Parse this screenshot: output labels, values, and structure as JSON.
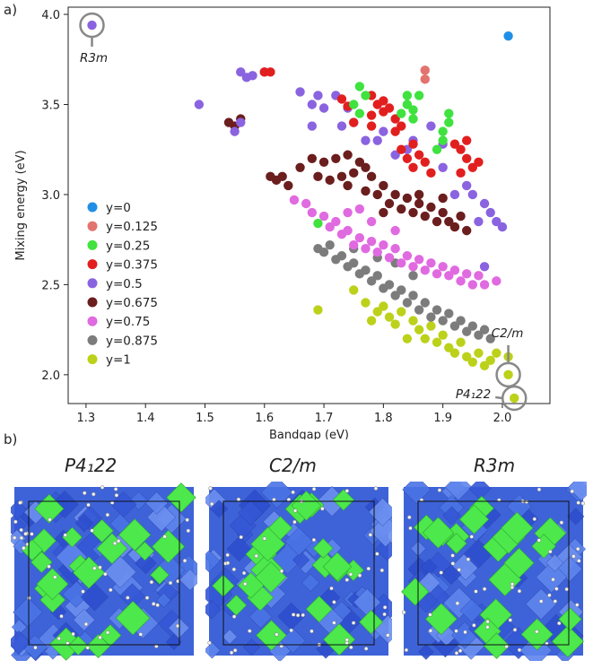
{
  "panel_a_label": "a)",
  "panel_b_label": "b)",
  "chart_data": {
    "type": "scatter",
    "xlabel": "Bandgap (eV)",
    "ylabel": "Mixing energy (eV)",
    "xlim": [
      1.27,
      2.08
    ],
    "ylim": [
      1.84,
      4.04
    ],
    "xticks": [
      1.3,
      1.4,
      1.5,
      1.6,
      1.7,
      1.8,
      1.9,
      2.0
    ],
    "yticks": [
      2.0,
      2.5,
      3.0,
      3.5,
      4.0
    ],
    "xtick_labels": [
      "1.3",
      "1.4",
      "1.5",
      "1.6",
      "1.7",
      "1.8",
      "1.9",
      "2.0"
    ],
    "ytick_labels": [
      "2.0",
      "2.5",
      "3.0",
      "3.5",
      "4.0"
    ],
    "legend_location": "center-left",
    "series": [
      {
        "name": "y=0",
        "color": "#1f8fe6",
        "points": [
          [
            2.01,
            3.88
          ]
        ]
      },
      {
        "name": "y=0.125",
        "color": "#e2736e",
        "points": [
          [
            1.87,
            3.69
          ],
          [
            1.87,
            3.64
          ]
        ]
      },
      {
        "name": "y=0.25",
        "color": "#3fe23f",
        "points": [
          [
            1.76,
            3.6
          ],
          [
            1.77,
            3.55
          ],
          [
            1.75,
            3.5
          ],
          [
            1.76,
            3.45
          ],
          [
            1.84,
            3.55
          ],
          [
            1.84,
            3.5
          ],
          [
            1.85,
            3.47
          ],
          [
            1.85,
            3.42
          ],
          [
            1.83,
            3.45
          ],
          [
            1.91,
            3.45
          ],
          [
            1.91,
            3.4
          ],
          [
            1.9,
            3.35
          ],
          [
            1.9,
            3.3
          ],
          [
            1.89,
            3.25
          ],
          [
            1.86,
            3.55
          ],
          [
            1.69,
            2.84
          ]
        ]
      },
      {
        "name": "y=0.375",
        "color": "#e21f1f",
        "points": [
          [
            1.6,
            3.68
          ],
          [
            1.61,
            3.68
          ],
          [
            1.73,
            3.53
          ],
          [
            1.74,
            3.49
          ],
          [
            1.78,
            3.55
          ],
          [
            1.79,
            3.5
          ],
          [
            1.8,
            3.46
          ],
          [
            1.78,
            3.44
          ],
          [
            1.81,
            3.48
          ],
          [
            1.8,
            3.52
          ],
          [
            1.82,
            3.42
          ],
          [
            1.83,
            3.38
          ],
          [
            1.82,
            3.35
          ],
          [
            1.85,
            3.28
          ],
          [
            1.86,
            3.22
          ],
          [
            1.84,
            3.2
          ],
          [
            1.87,
            3.18
          ],
          [
            1.83,
            3.25
          ],
          [
            1.85,
            3.15
          ],
          [
            1.93,
            3.25
          ],
          [
            1.94,
            3.2
          ],
          [
            1.95,
            3.15
          ],
          [
            1.96,
            3.18
          ],
          [
            1.93,
            3.12
          ],
          [
            1.92,
            3.28
          ],
          [
            1.94,
            3.3
          ],
          [
            1.78,
            3.38
          ],
          [
            1.75,
            3.4
          ],
          [
            1.88,
            3.12
          ]
        ]
      },
      {
        "name": "y=0.5",
        "color": "#8a63e0",
        "points": [
          [
            1.31,
            3.94
          ],
          [
            1.49,
            3.5
          ],
          [
            1.56,
            3.68
          ],
          [
            1.57,
            3.65
          ],
          [
            1.58,
            3.66
          ],
          [
            1.6,
            3.68
          ],
          [
            1.55,
            3.35
          ],
          [
            1.56,
            3.4
          ],
          [
            1.66,
            3.57
          ],
          [
            1.68,
            3.5
          ],
          [
            1.69,
            3.55
          ],
          [
            1.7,
            3.48
          ],
          [
            1.72,
            3.55
          ],
          [
            1.74,
            3.48
          ],
          [
            1.75,
            3.4
          ],
          [
            1.73,
            3.38
          ],
          [
            1.77,
            3.3
          ],
          [
            1.79,
            3.3
          ],
          [
            1.8,
            3.35
          ],
          [
            1.84,
            3.25
          ],
          [
            1.88,
            3.38
          ],
          [
            1.9,
            3.15
          ],
          [
            1.94,
            3.05
          ],
          [
            1.95,
            3.0
          ],
          [
            1.97,
            2.95
          ],
          [
            1.98,
            2.9
          ],
          [
            1.99,
            2.85
          ],
          [
            2.0,
            2.82
          ],
          [
            1.92,
            3.0
          ],
          [
            1.96,
            2.85
          ],
          [
            1.97,
            2.6
          ],
          [
            1.68,
            3.38
          ],
          [
            1.82,
            3.22
          ],
          [
            1.85,
            3.3
          ],
          [
            1.9,
            3.28
          ]
        ]
      },
      {
        "name": "y=0.675",
        "color": "#6b1e1e",
        "points": [
          [
            1.54,
            3.4
          ],
          [
            1.55,
            3.38
          ],
          [
            1.56,
            3.42
          ],
          [
            1.61,
            3.1
          ],
          [
            1.62,
            3.08
          ],
          [
            1.63,
            3.1
          ],
          [
            1.64,
            3.05
          ],
          [
            1.66,
            3.15
          ],
          [
            1.68,
            3.2
          ],
          [
            1.69,
            3.1
          ],
          [
            1.7,
            3.18
          ],
          [
            1.71,
            3.08
          ],
          [
            1.72,
            3.2
          ],
          [
            1.73,
            3.1
          ],
          [
            1.74,
            3.05
          ],
          [
            1.75,
            3.12
          ],
          [
            1.76,
            3.18
          ],
          [
            1.77,
            3.02
          ],
          [
            1.78,
            3.1
          ],
          [
            1.79,
            3.0
          ],
          [
            1.8,
            3.05
          ],
          [
            1.81,
            2.95
          ],
          [
            1.82,
            3.0
          ],
          [
            1.83,
            2.92
          ],
          [
            1.84,
            2.98
          ],
          [
            1.85,
            2.9
          ],
          [
            1.86,
            2.95
          ],
          [
            1.87,
            2.88
          ],
          [
            1.88,
            2.93
          ],
          [
            1.89,
            2.85
          ],
          [
            1.9,
            2.9
          ],
          [
            1.91,
            2.85
          ],
          [
            1.92,
            2.82
          ],
          [
            1.93,
            2.88
          ],
          [
            1.94,
            2.8
          ],
          [
            1.77,
            3.15
          ],
          [
            1.74,
            3.22
          ],
          [
            1.8,
            2.9
          ],
          [
            1.86,
            3.0
          ],
          [
            1.9,
            2.98
          ]
        ]
      },
      {
        "name": "y=0.75",
        "color": "#e06ae0",
        "points": [
          [
            1.65,
            2.97
          ],
          [
            1.67,
            2.95
          ],
          [
            1.68,
            2.9
          ],
          [
            1.7,
            2.88
          ],
          [
            1.71,
            2.82
          ],
          [
            1.72,
            2.85
          ],
          [
            1.73,
            2.78
          ],
          [
            1.74,
            2.8
          ],
          [
            1.75,
            2.72
          ],
          [
            1.76,
            2.76
          ],
          [
            1.77,
            2.7
          ],
          [
            1.78,
            2.74
          ],
          [
            1.79,
            2.68
          ],
          [
            1.8,
            2.72
          ],
          [
            1.81,
            2.65
          ],
          [
            1.82,
            2.7
          ],
          [
            1.83,
            2.62
          ],
          [
            1.84,
            2.66
          ],
          [
            1.85,
            2.6
          ],
          [
            1.86,
            2.64
          ],
          [
            1.87,
            2.58
          ],
          [
            1.88,
            2.62
          ],
          [
            1.89,
            2.56
          ],
          [
            1.9,
            2.6
          ],
          [
            1.91,
            2.55
          ],
          [
            1.92,
            2.58
          ],
          [
            1.93,
            2.52
          ],
          [
            1.94,
            2.56
          ],
          [
            1.95,
            2.5
          ],
          [
            1.96,
            2.55
          ],
          [
            1.97,
            2.5
          ],
          [
            1.99,
            2.52
          ],
          [
            1.78,
            2.85
          ],
          [
            1.74,
            2.9
          ],
          [
            1.82,
            2.8
          ],
          [
            1.76,
            2.92
          ]
        ]
      },
      {
        "name": "y=0.875",
        "color": "#7c7c7c",
        "points": [
          [
            1.69,
            2.7
          ],
          [
            1.7,
            2.68
          ],
          [
            1.71,
            2.72
          ],
          [
            1.72,
            2.64
          ],
          [
            1.73,
            2.66
          ],
          [
            1.74,
            2.6
          ],
          [
            1.75,
            2.62
          ],
          [
            1.76,
            2.56
          ],
          [
            1.77,
            2.58
          ],
          [
            1.78,
            2.52
          ],
          [
            1.79,
            2.55
          ],
          [
            1.8,
            2.48
          ],
          [
            1.81,
            2.5
          ],
          [
            1.82,
            2.44
          ],
          [
            1.83,
            2.47
          ],
          [
            1.84,
            2.4
          ],
          [
            1.85,
            2.44
          ],
          [
            1.86,
            2.36
          ],
          [
            1.87,
            2.4
          ],
          [
            1.88,
            2.32
          ],
          [
            1.89,
            2.36
          ],
          [
            1.9,
            2.3
          ],
          [
            1.91,
            2.34
          ],
          [
            1.92,
            2.27
          ],
          [
            1.93,
            2.3
          ],
          [
            1.94,
            2.24
          ],
          [
            1.95,
            2.27
          ],
          [
            1.96,
            2.22
          ],
          [
            1.97,
            2.25
          ],
          [
            1.98,
            2.2
          ],
          [
            1.82,
            2.62
          ],
          [
            1.85,
            2.55
          ],
          [
            1.79,
            2.65
          ],
          [
            1.75,
            2.7
          ]
        ]
      },
      {
        "name": "y=1",
        "color": "#bcd11a",
        "points": [
          [
            1.69,
            2.36
          ],
          [
            1.75,
            2.47
          ],
          [
            1.77,
            2.4
          ],
          [
            1.79,
            2.35
          ],
          [
            1.8,
            2.38
          ],
          [
            1.81,
            2.32
          ],
          [
            1.82,
            2.28
          ],
          [
            1.83,
            2.35
          ],
          [
            1.85,
            2.3
          ],
          [
            1.86,
            2.25
          ],
          [
            1.87,
            2.2
          ],
          [
            1.88,
            2.27
          ],
          [
            1.89,
            2.18
          ],
          [
            1.9,
            2.22
          ],
          [
            1.91,
            2.15
          ],
          [
            1.92,
            2.12
          ],
          [
            1.93,
            2.18
          ],
          [
            1.94,
            2.1
          ],
          [
            1.95,
            2.07
          ],
          [
            1.96,
            2.12
          ],
          [
            1.97,
            2.05
          ],
          [
            1.98,
            2.08
          ],
          [
            1.99,
            2.12
          ],
          [
            2.01,
            2.1
          ],
          [
            2.01,
            2.0
          ],
          [
            2.02,
            1.87
          ],
          [
            1.84,
            2.2
          ],
          [
            1.78,
            2.3
          ]
        ]
      }
    ],
    "annotations": [
      {
        "label": "R3m",
        "x": 1.31,
        "y": 3.94,
        "pointer": "down"
      },
      {
        "label": "C2/m",
        "x": 2.01,
        "y": 2.0,
        "pointer": "up"
      },
      {
        "label": "P4₁22",
        "x": 2.02,
        "y": 1.87,
        "pointer": "left"
      }
    ]
  },
  "panel_b": {
    "structures": [
      {
        "title": "P4₁22"
      },
      {
        "title": "C2/m"
      },
      {
        "title": "R3m"
      }
    ]
  }
}
